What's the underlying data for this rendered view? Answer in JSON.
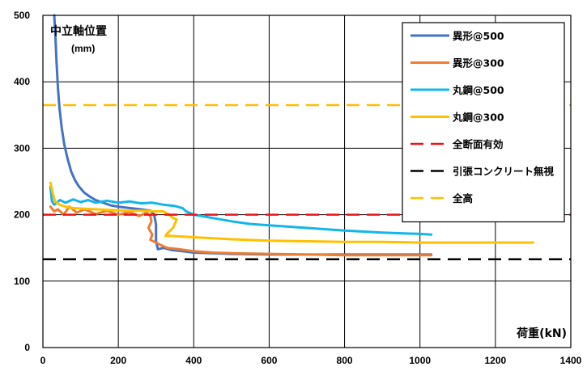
{
  "chart_data": {
    "type": "line",
    "title": "",
    "xlabel": "荷重(kN)",
    "ylabel": "中立軸位置",
    "ylabel_unit": "(mm)",
    "xlim": [
      0,
      1400
    ],
    "ylim": [
      0,
      500
    ],
    "x_ticks": [
      "0",
      "200",
      "400",
      "600",
      "800",
      "1000",
      "1200",
      "1400"
    ],
    "y_ticks": [
      "0",
      "100",
      "200",
      "300",
      "400",
      "500"
    ],
    "grid": true,
    "legend_position": "top-right",
    "series": [
      {
        "name": "異形@500",
        "color": "#4472C4",
        "dash": "solid",
        "points": [
          [
            30,
            500
          ],
          [
            33,
            470
          ],
          [
            36,
            430
          ],
          [
            40,
            390
          ],
          [
            44,
            360
          ],
          [
            50,
            330
          ],
          [
            57,
            305
          ],
          [
            65,
            285
          ],
          [
            75,
            265
          ],
          [
            85,
            252
          ],
          [
            95,
            243
          ],
          [
            110,
            233
          ],
          [
            125,
            227
          ],
          [
            140,
            222
          ],
          [
            160,
            218
          ],
          [
            180,
            214
          ],
          [
            200,
            212
          ],
          [
            230,
            210
          ],
          [
            260,
            208
          ],
          [
            285,
            206
          ],
          [
            295,
            200
          ],
          [
            300,
            185
          ],
          [
            300,
            160
          ],
          [
            305,
            148
          ],
          [
            320,
            150
          ],
          [
            340,
            147
          ],
          [
            370,
            145
          ],
          [
            400,
            143
          ],
          [
            450,
            142
          ],
          [
            500,
            141
          ],
          [
            600,
            140
          ],
          [
            700,
            140
          ],
          [
            800,
            140
          ],
          [
            900,
            140
          ],
          [
            1000,
            140
          ],
          [
            1030,
            140
          ]
        ]
      },
      {
        "name": "異形@300",
        "color": "#ED7D31",
        "dash": "solid",
        "points": [
          [
            20,
            212
          ],
          [
            30,
            205
          ],
          [
            40,
            208
          ],
          [
            55,
            200
          ],
          [
            70,
            212
          ],
          [
            90,
            203
          ],
          [
            110,
            208
          ],
          [
            140,
            201
          ],
          [
            170,
            206
          ],
          [
            200,
            200
          ],
          [
            230,
            204
          ],
          [
            255,
            198
          ],
          [
            275,
            203
          ],
          [
            285,
            198
          ],
          [
            288,
            190
          ],
          [
            280,
            180
          ],
          [
            290,
            170
          ],
          [
            285,
            162
          ],
          [
            300,
            158
          ],
          [
            310,
            155
          ],
          [
            330,
            150
          ],
          [
            360,
            148
          ],
          [
            400,
            145
          ],
          [
            450,
            143
          ],
          [
            500,
            142
          ],
          [
            600,
            141
          ],
          [
            700,
            140
          ],
          [
            800,
            139
          ],
          [
            900,
            139
          ],
          [
            1000,
            139
          ],
          [
            1030,
            139
          ]
        ]
      },
      {
        "name": "丸鋼@500",
        "color": "#13B5EA",
        "dash": "solid",
        "points": [
          [
            20,
            242
          ],
          [
            24,
            220
          ],
          [
            30,
            215
          ],
          [
            45,
            222
          ],
          [
            60,
            218
          ],
          [
            80,
            223
          ],
          [
            100,
            219
          ],
          [
            120,
            222
          ],
          [
            140,
            218
          ],
          [
            170,
            221
          ],
          [
            200,
            218
          ],
          [
            230,
            220
          ],
          [
            260,
            217
          ],
          [
            290,
            218
          ],
          [
            320,
            215
          ],
          [
            350,
            213
          ],
          [
            370,
            210
          ],
          [
            380,
            205
          ],
          [
            400,
            200
          ],
          [
            450,
            195
          ],
          [
            500,
            190
          ],
          [
            550,
            186
          ],
          [
            600,
            184
          ],
          [
            700,
            180
          ],
          [
            800,
            176
          ],
          [
            900,
            173
          ],
          [
            1000,
            171
          ],
          [
            1030,
            170
          ]
        ]
      },
      {
        "name": "丸鋼@300",
        "color": "#FFC000",
        "dash": "solid",
        "points": [
          [
            20,
            248
          ],
          [
            25,
            235
          ],
          [
            32,
            220
          ],
          [
            45,
            215
          ],
          [
            60,
            212
          ],
          [
            80,
            210
          ],
          [
            110,
            209
          ],
          [
            140,
            208
          ],
          [
            180,
            207
          ],
          [
            220,
            206
          ],
          [
            260,
            206
          ],
          [
            300,
            205
          ],
          [
            320,
            205
          ],
          [
            335,
            200
          ],
          [
            345,
            195
          ],
          [
            355,
            193
          ],
          [
            345,
            180
          ],
          [
            330,
            172
          ],
          [
            325,
            168
          ],
          [
            340,
            168
          ],
          [
            400,
            166
          ],
          [
            500,
            163
          ],
          [
            600,
            161
          ],
          [
            700,
            160
          ],
          [
            800,
            159
          ],
          [
            900,
            159
          ],
          [
            1000,
            158
          ],
          [
            1100,
            158
          ],
          [
            1200,
            158
          ],
          [
            1300,
            158
          ]
        ]
      },
      {
        "name": "全断面有効",
        "color": "#E8141C",
        "dash": "dashed",
        "points": [
          [
            0,
            200
          ],
          [
            1400,
            200
          ]
        ]
      },
      {
        "name": "引張コンクリート無視",
        "color": "#000000",
        "dash": "dashed",
        "points": [
          [
            0,
            133
          ],
          [
            1400,
            133
          ]
        ]
      },
      {
        "name": "全高",
        "color": "#FFC000",
        "dash": "dashed",
        "points": [
          [
            0,
            365
          ],
          [
            1400,
            365
          ]
        ]
      }
    ]
  }
}
